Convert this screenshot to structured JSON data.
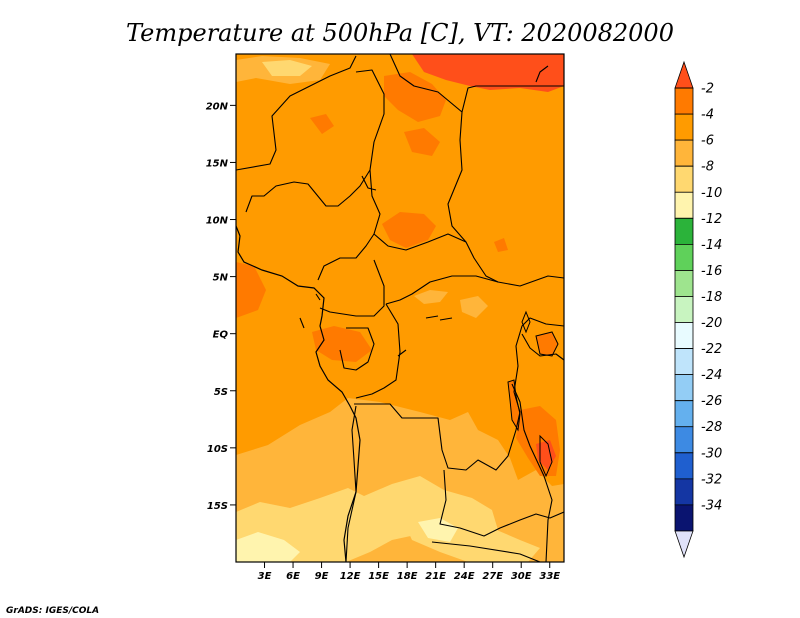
{
  "title": "Temperature at 500hPa [C], VT: 2020082000",
  "credit": "GrADS: IGES/COLA",
  "map": {
    "type": "filled-contour-map",
    "variable": "Temperature at 500hPa",
    "units": "C",
    "lon_range": [
      0,
      34.5
    ],
    "lat_range": [
      -20,
      24.5
    ],
    "lat_ticks": [
      {
        "label": "20N",
        "lat": 20
      },
      {
        "label": "15N",
        "lat": 15
      },
      {
        "label": "10N",
        "lat": 10
      },
      {
        "label": "5N",
        "lat": 5
      },
      {
        "label": "EQ",
        "lat": 0
      },
      {
        "label": "5S",
        "lat": -5
      },
      {
        "label": "10S",
        "lat": -10
      },
      {
        "label": "15S",
        "lat": -15
      }
    ],
    "lon_ticks": [
      {
        "label": "3E",
        "lon": 3
      },
      {
        "label": "6E",
        "lon": 6
      },
      {
        "label": "9E",
        "lon": 9
      },
      {
        "label": "12E",
        "lon": 12
      },
      {
        "label": "15E",
        "lon": 15
      },
      {
        "label": "18E",
        "lon": 18
      },
      {
        "label": "21E",
        "lon": 21
      },
      {
        "label": "24E",
        "lon": 24
      },
      {
        "label": "27E",
        "lon": 27
      },
      {
        "label": "30E",
        "lon": 30
      },
      {
        "label": "33E",
        "lon": 33
      }
    ]
  },
  "colorbar": {
    "labels": [
      "-2",
      "-4",
      "-6",
      "-8",
      "-10",
      "-12",
      "-14",
      "-16",
      "-18",
      "-20",
      "-22",
      "-24",
      "-26",
      "-28",
      "-30",
      "-32",
      "-34"
    ],
    "colors": [
      "#ff4f1a",
      "#ff7a00",
      "#ff9b00",
      "#ffb53a",
      "#ffd870",
      "#fff4ae",
      "#2bb33a",
      "#5fd15a",
      "#9ee48e",
      "#c8f4c0",
      "#e8fbff",
      "#bfe4fb",
      "#93cdf5",
      "#64b0ee",
      "#3d8ae3",
      "#1f5fcf",
      "#1436a3",
      "#0a1470",
      "#e0e2fa"
    ]
  }
}
